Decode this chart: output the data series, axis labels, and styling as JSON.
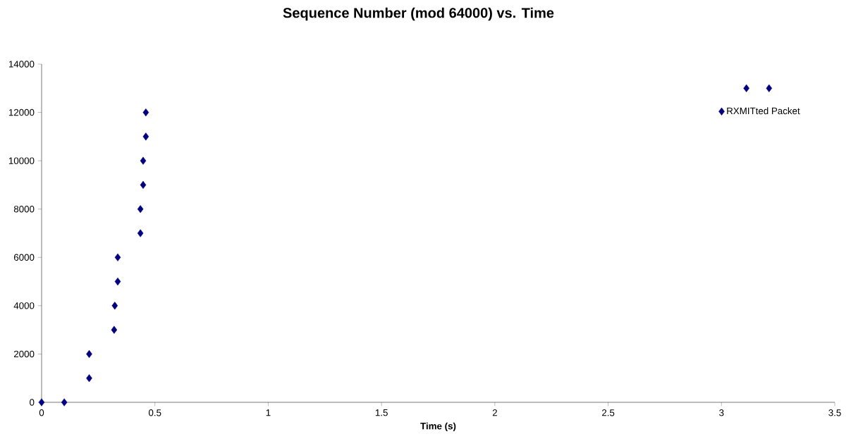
{
  "chart_data": {
    "type": "scatter",
    "title": "Sequence Number (mod 64000) vs. Time",
    "xlabel": "Time   (s)",
    "series": [
      {
        "name": "RXMITted Packet",
        "color": "#000080",
        "x": [
          0,
          0.1,
          0.21,
          0.21,
          0.32,
          0.323,
          0.336,
          0.336,
          0.436,
          0.436,
          0.448,
          0.448,
          0.46,
          0.46,
          3.11,
          3.21
        ],
        "values": [
          0,
          0,
          1000,
          2000,
          3000,
          4000,
          5000,
          6000,
          7000,
          8000,
          9000,
          10000,
          11000,
          12000,
          13000,
          13000
        ]
      }
    ],
    "xlim": [
      0,
      3.5
    ],
    "ylim": [
      0,
      14000
    ],
    "xticks": [
      0,
      0.5,
      1,
      1.5,
      2,
      2.5,
      3,
      3.5
    ],
    "yticks": [
      0,
      2000,
      4000,
      6000,
      8000,
      10000,
      12000,
      14000
    ],
    "marker": "diamond",
    "legend": "top right",
    "grid": false
  }
}
